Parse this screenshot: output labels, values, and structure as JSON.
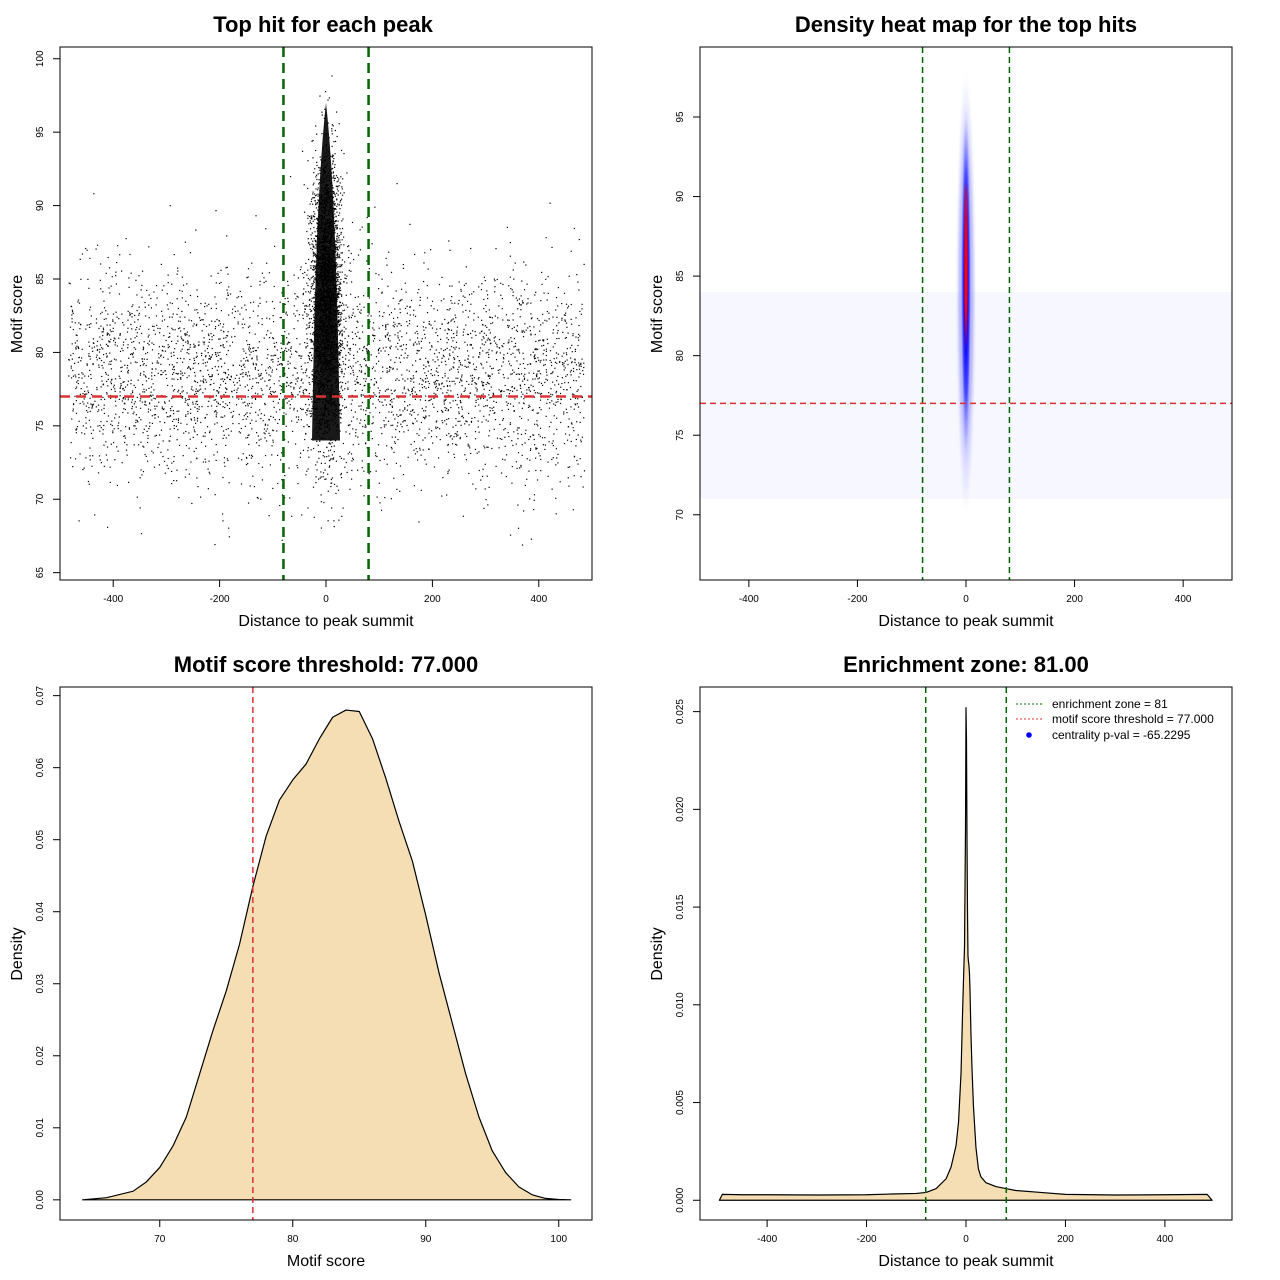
{
  "chart_data": [
    {
      "type": "scatter",
      "title": "Top hit for each peak",
      "xlabel": "Distance to peak summit",
      "ylabel": "Motif score",
      "xlim": [
        -500,
        500
      ],
      "ylim": [
        64.5,
        100.8
      ],
      "xticks": [
        -400,
        -200,
        0,
        200,
        400
      ],
      "yticks": [
        65,
        70,
        75,
        80,
        85,
        90,
        95,
        100
      ],
      "vlines": [
        -80,
        80
      ],
      "hline": 77,
      "background_points": {
        "x_range": [
          -485,
          485
        ],
        "y_center": 78.5,
        "y_sd": 3.6
      },
      "central_points": {
        "x_center": 0,
        "x_sd": 14,
        "y_center": 84,
        "y_sd": 4.5,
        "y_max": 99
      }
    },
    {
      "type": "heatmap",
      "title": "Density heat map for the top hits",
      "xlabel": "Distance to peak summit",
      "ylabel": "Motif score",
      "xlim": [
        -490,
        490
      ],
      "ylim": [
        65.9,
        99.4
      ],
      "xticks": [
        -400,
        -200,
        0,
        200,
        400
      ],
      "yticks": [
        70,
        75,
        80,
        85,
        90,
        95
      ],
      "vlines": [
        -80,
        80
      ],
      "hline": 77,
      "peak": {
        "x": 0,
        "y": 86.5
      }
    },
    {
      "type": "area",
      "title": "Motif score threshold: 77.000",
      "xlabel": "Motif score",
      "ylabel": "Density",
      "xlim": [
        62.5,
        102.5
      ],
      "ylim": [
        -0.0028,
        0.0712
      ],
      "xticks": [
        70,
        80,
        90,
        100
      ],
      "yticks": [
        0.0,
        0.01,
        0.02,
        0.03,
        0.04,
        0.05,
        0.06,
        0.07
      ],
      "ytick_labels": [
        "0.00",
        "0.01",
        "0.02",
        "0.03",
        "0.04",
        "0.05",
        "0.06",
        "0.07"
      ],
      "vline": 77,
      "x": [
        64.2,
        66,
        68,
        69,
        70,
        71,
        72,
        73,
        74,
        75,
        76,
        77,
        78,
        79,
        80,
        81,
        82,
        83,
        84,
        85,
        86,
        87,
        88,
        89,
        90,
        91,
        92,
        93,
        94,
        95,
        96,
        97,
        98,
        99,
        100,
        100.9
      ],
      "y": [
        0.0,
        0.0003,
        0.0012,
        0.0025,
        0.0045,
        0.0075,
        0.0115,
        0.0175,
        0.0235,
        0.029,
        0.0355,
        0.0435,
        0.0505,
        0.0555,
        0.0583,
        0.0605,
        0.064,
        0.067,
        0.068,
        0.0678,
        0.064,
        0.0585,
        0.0525,
        0.047,
        0.0395,
        0.0315,
        0.0245,
        0.0175,
        0.0115,
        0.0068,
        0.0038,
        0.0018,
        0.0007,
        0.0002,
        5e-05,
        0.0
      ]
    },
    {
      "type": "area",
      "title": "Enrichment zone: 81.00",
      "xlabel": "Distance to peak summit",
      "ylabel": "Density",
      "xlim": [
        -535,
        535
      ],
      "ylim": [
        -0.00101,
        0.02626
      ],
      "xticks": [
        -400,
        -200,
        0,
        200,
        400
      ],
      "yticks": [
        0.0,
        0.005,
        0.01,
        0.015,
        0.02,
        0.025
      ],
      "ytick_labels": [
        "0.000",
        "0.005",
        "0.010",
        "0.015",
        "0.020",
        "0.025"
      ],
      "vlines": [
        -81,
        81
      ],
      "x": [
        -496,
        -490,
        -450,
        -400,
        -300,
        -200,
        -150,
        -100,
        -80,
        -60,
        -40,
        -30,
        -20,
        -15,
        -10,
        -7,
        -5,
        -3,
        -1,
        0,
        1,
        2,
        3,
        4,
        5,
        6,
        7,
        8,
        10,
        12,
        15,
        20,
        25,
        30,
        40,
        60,
        80,
        100,
        150,
        200,
        300,
        400,
        485,
        495
      ],
      "y": [
        0.0,
        0.0003,
        0.00028,
        0.00028,
        0.00027,
        0.00028,
        0.00032,
        0.00035,
        0.0004,
        0.0006,
        0.0011,
        0.0017,
        0.0028,
        0.004,
        0.0065,
        0.0095,
        0.0113,
        0.013,
        0.019,
        0.0252,
        0.0235,
        0.0185,
        0.0148,
        0.0125,
        0.0122,
        0.012,
        0.0116,
        0.0108,
        0.0085,
        0.0068,
        0.0048,
        0.0027,
        0.0016,
        0.0012,
        0.0009,
        0.0007,
        0.0006,
        0.0005,
        0.0004,
        0.0003,
        0.00027,
        0.00028,
        0.0003,
        0.0
      ],
      "legend": [
        {
          "label": "enrichment zone = 81",
          "color": "#006400",
          "kind": "dotted-line"
        },
        {
          "label": "motif score threshold = 77.000",
          "color": "#dc3232",
          "kind": "dotted-line"
        },
        {
          "label": "centrality p-val = -65.2295",
          "color": "#0000ff",
          "kind": "point"
        }
      ],
      "legend_position": "top-right"
    }
  ],
  "colors": {
    "zone_line": "#006400",
    "threshold_line": "#dc3232",
    "density_fill": "#f5deb3",
    "heat_low": "#0000ff",
    "heat_high": "#ff0000",
    "points": "#000000"
  }
}
